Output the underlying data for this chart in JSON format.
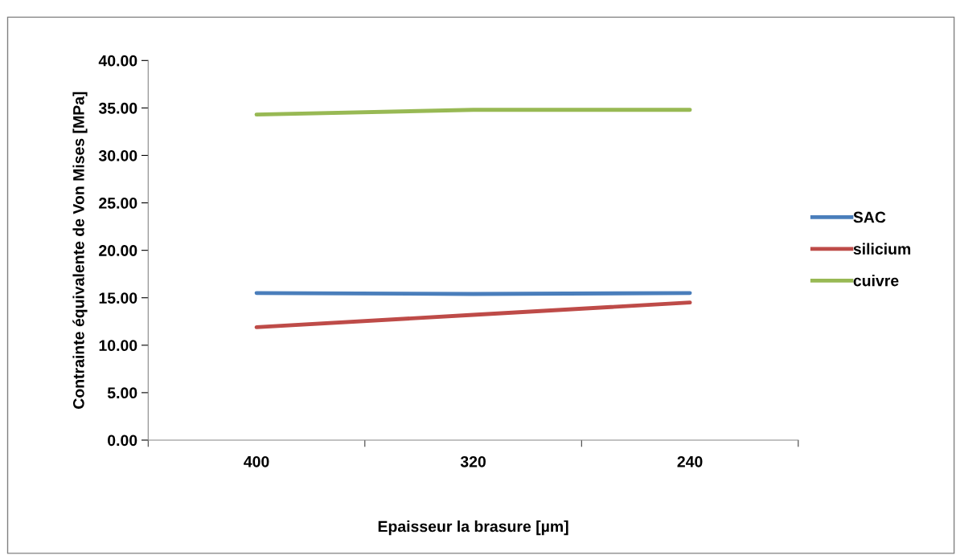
{
  "chart_data": {
    "type": "line",
    "xlabel": "Epaisseur la brasure [µm]",
    "ylabel": "Contrainte équivalente de Von Mises [MPa]",
    "categories": [
      "400",
      "320",
      "240"
    ],
    "series": [
      {
        "name": "SAC",
        "color": "#4a7ebb",
        "values": [
          15.5,
          15.4,
          15.5
        ]
      },
      {
        "name": "silicium",
        "color": "#be4b48",
        "values": [
          11.9,
          13.2,
          14.5
        ]
      },
      {
        "name": "cuivre",
        "color": "#98b954",
        "values": [
          34.3,
          34.8,
          34.8
        ]
      }
    ],
    "ylim": [
      0,
      40
    ],
    "yticks": [
      {
        "value": 0,
        "label": "0.00"
      },
      {
        "value": 5,
        "label": "5.00"
      },
      {
        "value": 10,
        "label": "10.00"
      },
      {
        "value": 15,
        "label": "15.00"
      },
      {
        "value": 20,
        "label": "20.00"
      },
      {
        "value": 25,
        "label": "25.00"
      },
      {
        "value": 30,
        "label": "30.00"
      },
      {
        "value": 35,
        "label": "35.00"
      },
      {
        "value": 40,
        "label": "40.00"
      }
    ],
    "grid": false,
    "legend": "right",
    "marker": "none",
    "line_style": "solid"
  }
}
